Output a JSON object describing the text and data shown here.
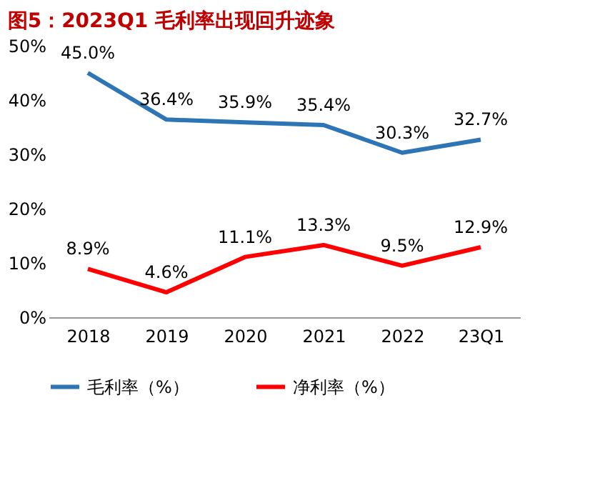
{
  "chart_data": {
    "type": "line",
    "title": "图5：2023Q1 毛利率出现回升迹象",
    "categories": [
      "2018",
      "2019",
      "2020",
      "2021",
      "2022",
      "23Q1"
    ],
    "series": [
      {
        "name": "毛利率（%）",
        "color": "#2e75b6",
        "values": [
          45.0,
          36.4,
          35.9,
          35.4,
          30.3,
          32.7
        ],
        "value_labels": [
          "45.0%",
          "36.4%",
          "35.9%",
          "35.4%",
          "30.3%",
          "32.7%"
        ]
      },
      {
        "name": "净利率（%）",
        "color": "#ff0000",
        "values": [
          8.9,
          4.6,
          11.1,
          13.3,
          9.5,
          12.9
        ],
        "value_labels": [
          "8.9%",
          "4.6%",
          "11.1%",
          "13.3%",
          "9.5%",
          "12.9%"
        ]
      }
    ],
    "ylim": [
      0,
      50
    ],
    "yticks": [
      {
        "value": 0,
        "label": "0%"
      },
      {
        "value": 10,
        "label": "10%"
      },
      {
        "value": 20,
        "label": "20%"
      },
      {
        "value": 30,
        "label": "30%"
      },
      {
        "value": 40,
        "label": "40%"
      },
      {
        "value": 50,
        "label": "50%"
      }
    ],
    "grid": false,
    "legend": "bottom",
    "marker": "none",
    "line_style": "solid"
  }
}
